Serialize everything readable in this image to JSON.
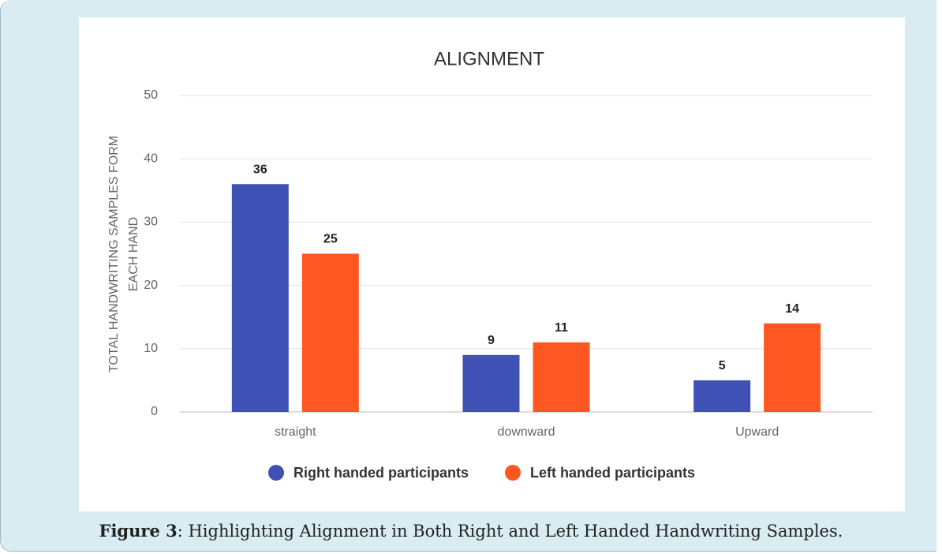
{
  "chart_data": {
    "type": "bar",
    "title": "ALIGNMENT",
    "y_label": [
      "TOTAL HANDWRITING SAMPLES FORM",
      "EACH HAND"
    ],
    "categories": [
      "straight",
      "downward",
      "Upward"
    ],
    "series": [
      {
        "name": "Right handed participants",
        "color": "#3f51b5",
        "values": [
          36,
          9,
          5
        ]
      },
      {
        "name": "Left handed participants",
        "color": "#ff5722",
        "values": [
          25,
          11,
          14
        ]
      }
    ],
    "ylim": [
      0,
      50
    ],
    "yticks": [
      0,
      10,
      20,
      30,
      40,
      50
    ],
    "grid": true,
    "legend": "bottom"
  },
  "caption": {
    "label": "Figure 3",
    "text": ": Highlighting Alignment in Both Right and Left Handed Handwriting Samples."
  }
}
